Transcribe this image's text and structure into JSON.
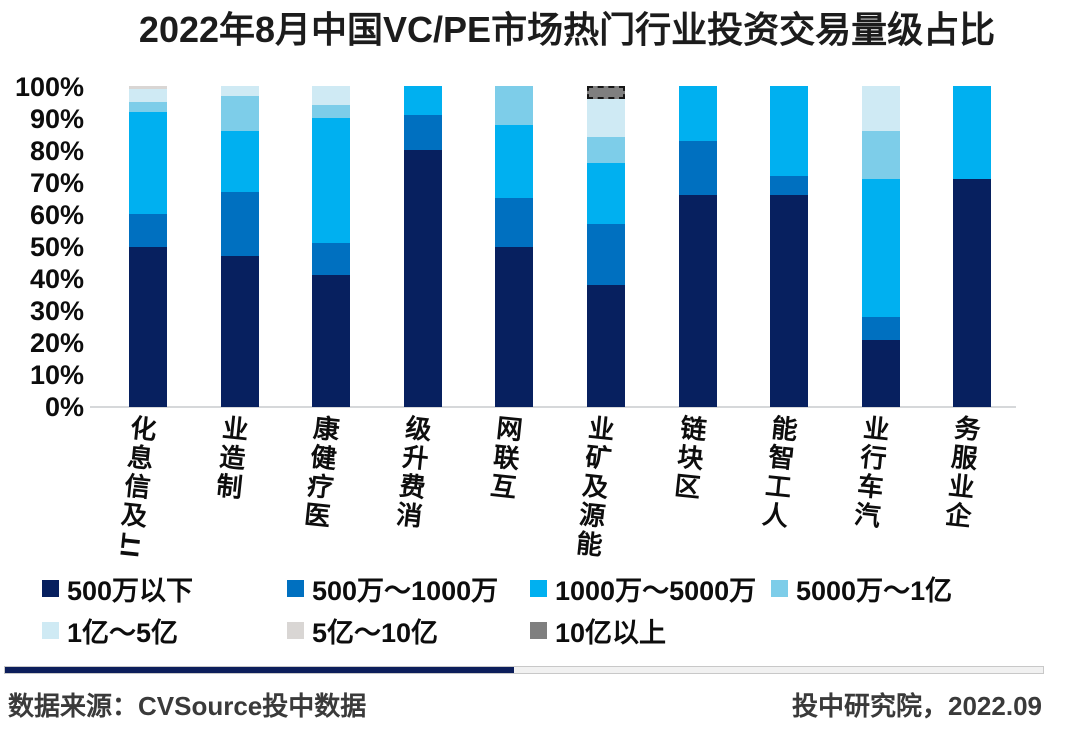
{
  "chart_data": {
    "type": "bar",
    "variant": "stacked-100-percent",
    "title": "2022年8月中国VC/PE市场热门行业投资交易量级占比",
    "categories": [
      "IT及信息化",
      "制造业",
      "医疗健康",
      "消费升级",
      "互联网",
      "能源及矿业",
      "区块链",
      "人工智能",
      "汽车行业",
      "企业服务"
    ],
    "series": [
      {
        "name": "500万以下",
        "color": "#07205f",
        "values": [
          50,
          47,
          41,
          80,
          50,
          38,
          66,
          66,
          21,
          71
        ]
      },
      {
        "name": "500万～1000万",
        "color": "#0070c0",
        "values": [
          10,
          20,
          10,
          11,
          15,
          19,
          17,
          6,
          7,
          0
        ]
      },
      {
        "name": "1000万～5000万",
        "color": "#00b0f0",
        "values": [
          32,
          19,
          39,
          9,
          23,
          19,
          17,
          28,
          43,
          29
        ]
      },
      {
        "name": "5000万～1亿",
        "color": "#7dcde9",
        "values": [
          3,
          11,
          4,
          0,
          12,
          8,
          0,
          0,
          15,
          0
        ]
      },
      {
        "name": "1亿～5亿",
        "color": "#cfeaf4",
        "values": [
          4,
          3,
          6,
          0,
          0,
          12,
          0,
          0,
          14,
          0
        ]
      },
      {
        "name": "5亿～10亿",
        "color": "#d9d6d4",
        "values": [
          1,
          0,
          0,
          0,
          0,
          0,
          0,
          0,
          0,
          0
        ]
      },
      {
        "name": "10亿以上",
        "color": "#7f7f7f",
        "values": [
          0,
          0,
          0,
          0,
          0,
          4,
          0,
          0,
          0,
          0
        ]
      }
    ],
    "y_ticks": [
      "100%",
      "90%",
      "80%",
      "70%",
      "60%",
      "50%",
      "40%",
      "30%",
      "20%",
      "10%",
      "0%"
    ],
    "ylim": [
      0,
      100
    ],
    "grid": "off",
    "legend_position": "bottom",
    "axis_line_color": "#d6d8da",
    "selection_outline": {
      "category": "能源及矿业",
      "series": "10亿以上"
    }
  },
  "footer": {
    "source": "数据来源：CVSource投中数据",
    "credit": "投中研究院，2022.09",
    "divider_fill_percent": 49,
    "divider_fill_color": "#0c1e5b",
    "divider_track_color": "#f1f1f1"
  }
}
